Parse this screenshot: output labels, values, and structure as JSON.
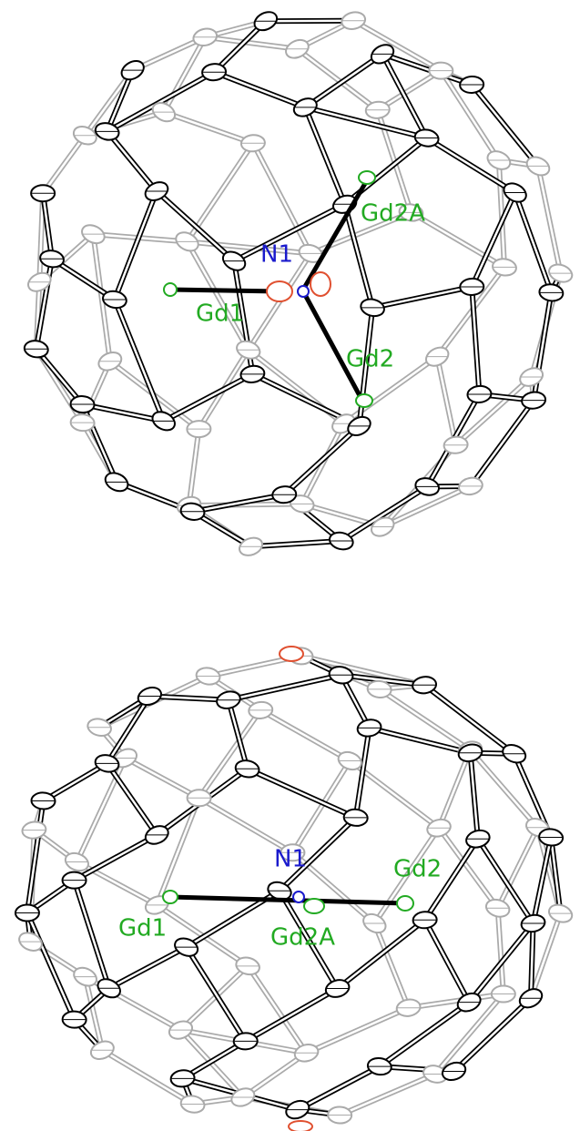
{
  "panels": [
    {
      "labels": {
        "n1": "N1",
        "gd1": "Gd1",
        "gd2": "Gd2",
        "gd2a": "Gd2A"
      }
    },
    {
      "labels": {
        "n1": "N1",
        "gd1": "Gd1",
        "gd2": "Gd2",
        "gd2a": "Gd2A"
      }
    }
  ]
}
